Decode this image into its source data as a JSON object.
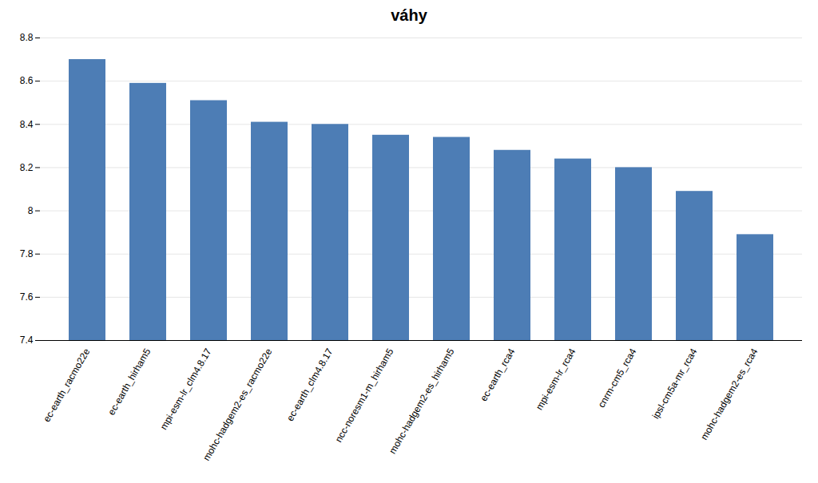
{
  "chart_data": {
    "type": "bar",
    "title": "váhy",
    "categories": [
      "ec-earth_racmo22e",
      "ec-earth_hirham5",
      "mpi-esm-lr_clm4.8.17",
      "mohc-hadgem2-es_racmo22e",
      "ec-earth_clm4.8.17",
      "ncc-noresm1-m_hirham5",
      "mohc-hadgem2-es_hirham5",
      "ec-earth_rca4",
      "mpi-esm-lr_rca4",
      "cnrm-cm5_rca4",
      "ipsl-cm5a-mr_rca4",
      "mohc-hadgem2-es_rca4"
    ],
    "values": [
      8.7,
      8.59,
      8.51,
      8.41,
      8.4,
      8.35,
      8.34,
      8.28,
      8.24,
      8.2,
      8.09,
      7.89
    ],
    "color": "#4d7db5",
    "ylim": [
      7.4,
      8.8
    ],
    "yticks": [
      7.4,
      7.6,
      7.8,
      8,
      8.2,
      8.4,
      8.6,
      8.8
    ],
    "grid": true
  }
}
